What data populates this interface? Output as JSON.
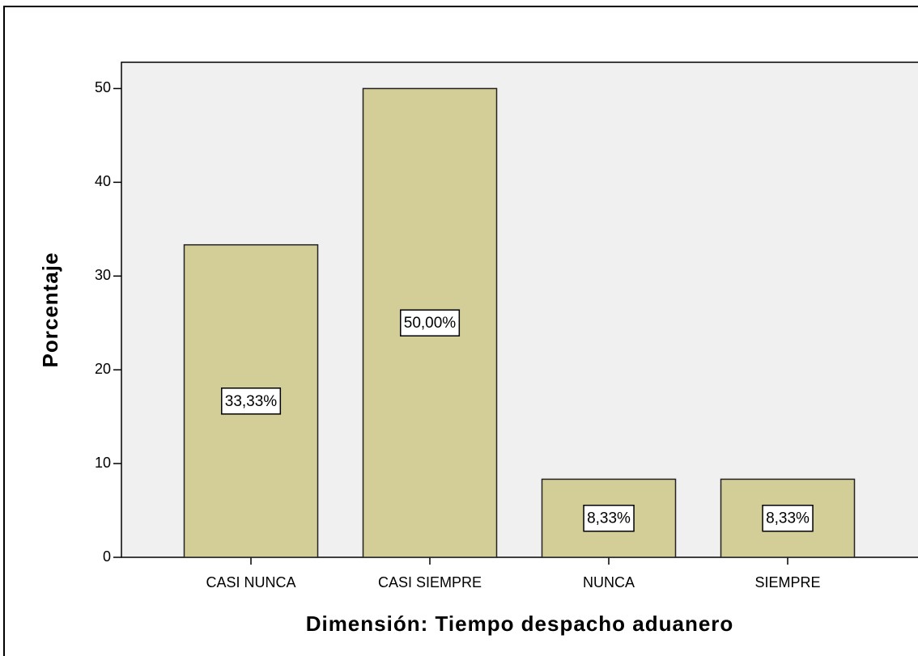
{
  "chart_data": {
    "type": "bar",
    "x_label": "Dimensión: Tiempo despacho aduanero",
    "y_label": "Porcentaje",
    "categories": [
      "CASI NUNCA",
      "CASI SIEMPRE",
      "NUNCA",
      "SIEMPRE"
    ],
    "values": [
      33.33,
      50.0,
      8.33,
      8.33
    ],
    "value_labels": [
      "33,33%",
      "50,00%",
      "8,33%",
      "8,33%"
    ],
    "color": "#d3ce97",
    "ylim": [
      0,
      52.8
    ],
    "yticks": [
      0,
      10,
      20,
      30,
      40,
      50
    ],
    "grid": false
  }
}
